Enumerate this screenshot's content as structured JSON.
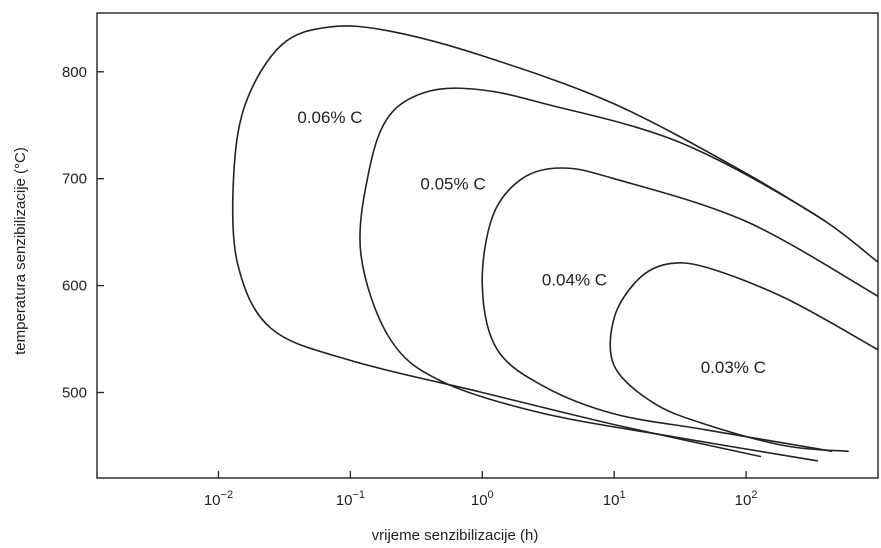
{
  "chart_data": {
    "type": "line",
    "title": "",
    "xlabel": "vrijeme senzibilizacije (h)",
    "ylabel": "temperatura senzibilizacije (°C)",
    "x_scale": "log",
    "xlim": [
      0.0012,
      1000
    ],
    "ylim": [
      420,
      855
    ],
    "grid": false,
    "legend": "none",
    "x_ticks": [
      {
        "value": 0.01,
        "base": "10",
        "exp": "−2"
      },
      {
        "value": 0.1,
        "base": "10",
        "exp": "−1"
      },
      {
        "value": 1,
        "base": "10",
        "exp": "0"
      },
      {
        "value": 10,
        "base": "10",
        "exp": "1"
      },
      {
        "value": 100,
        "base": "10",
        "exp": "2"
      }
    ],
    "y_ticks": [
      500,
      600,
      700,
      800
    ],
    "series": [
      {
        "name": "0.06% C",
        "label_pos": [
          0.07,
          752
        ],
        "points": [
          [
            130,
            440
          ],
          [
            10,
            470
          ],
          [
            1,
            500
          ],
          [
            0.1,
            530
          ],
          [
            0.025,
            560
          ],
          [
            0.014,
            620
          ],
          [
            0.013,
            700
          ],
          [
            0.016,
            770
          ],
          [
            0.03,
            825
          ],
          [
            0.07,
            842
          ],
          [
            0.2,
            838
          ],
          [
            1,
            815
          ],
          [
            10,
            770
          ],
          [
            100,
            705
          ],
          [
            400,
            660
          ]
        ]
      },
      {
        "name": "0.05% C",
        "label_pos": [
          0.6,
          690
        ],
        "points": [
          [
            350,
            436
          ],
          [
            30,
            458
          ],
          [
            3,
            480
          ],
          [
            0.5,
            510
          ],
          [
            0.2,
            550
          ],
          [
            0.12,
            630
          ],
          [
            0.14,
            710
          ],
          [
            0.2,
            760
          ],
          [
            0.4,
            782
          ],
          [
            1,
            783
          ],
          [
            3,
            770
          ],
          [
            30,
            735
          ],
          [
            300,
            670
          ],
          [
            1000,
            622
          ]
        ]
      },
      {
        "name": "0.04% C",
        "label_pos": [
          5,
          600
        ],
        "points": [
          [
            450,
            445
          ],
          [
            50,
            465
          ],
          [
            10,
            480
          ],
          [
            3,
            505
          ],
          [
            1.3,
            540
          ],
          [
            1.0,
            600
          ],
          [
            1.2,
            665
          ],
          [
            2,
            700
          ],
          [
            4,
            710
          ],
          [
            10,
            700
          ],
          [
            100,
            660
          ],
          [
            1000,
            590
          ]
        ]
      },
      {
        "name": "0.03% C",
        "label_pos": [
          80,
          518
        ],
        "points": [
          [
            600,
            445
          ],
          [
            200,
            450
          ],
          [
            50,
            470
          ],
          [
            20,
            490
          ],
          [
            10,
            525
          ],
          [
            10,
            570
          ],
          [
            15,
            605
          ],
          [
            25,
            620
          ],
          [
            50,
            617
          ],
          [
            200,
            588
          ],
          [
            1000,
            540
          ]
        ]
      }
    ]
  }
}
